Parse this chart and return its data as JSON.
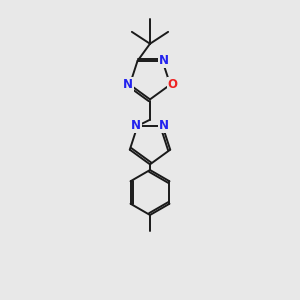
{
  "background_color": "#e8e8e8",
  "bond_color": "#1a1a1a",
  "bond_width": 1.4,
  "atom_colors": {
    "N": "#2222ee",
    "O": "#ee2222"
  },
  "figsize": [
    3.0,
    3.0
  ],
  "dpi": 100,
  "xlim": [
    3.5,
    6.5
  ],
  "ylim": [
    0.2,
    9.8
  ]
}
